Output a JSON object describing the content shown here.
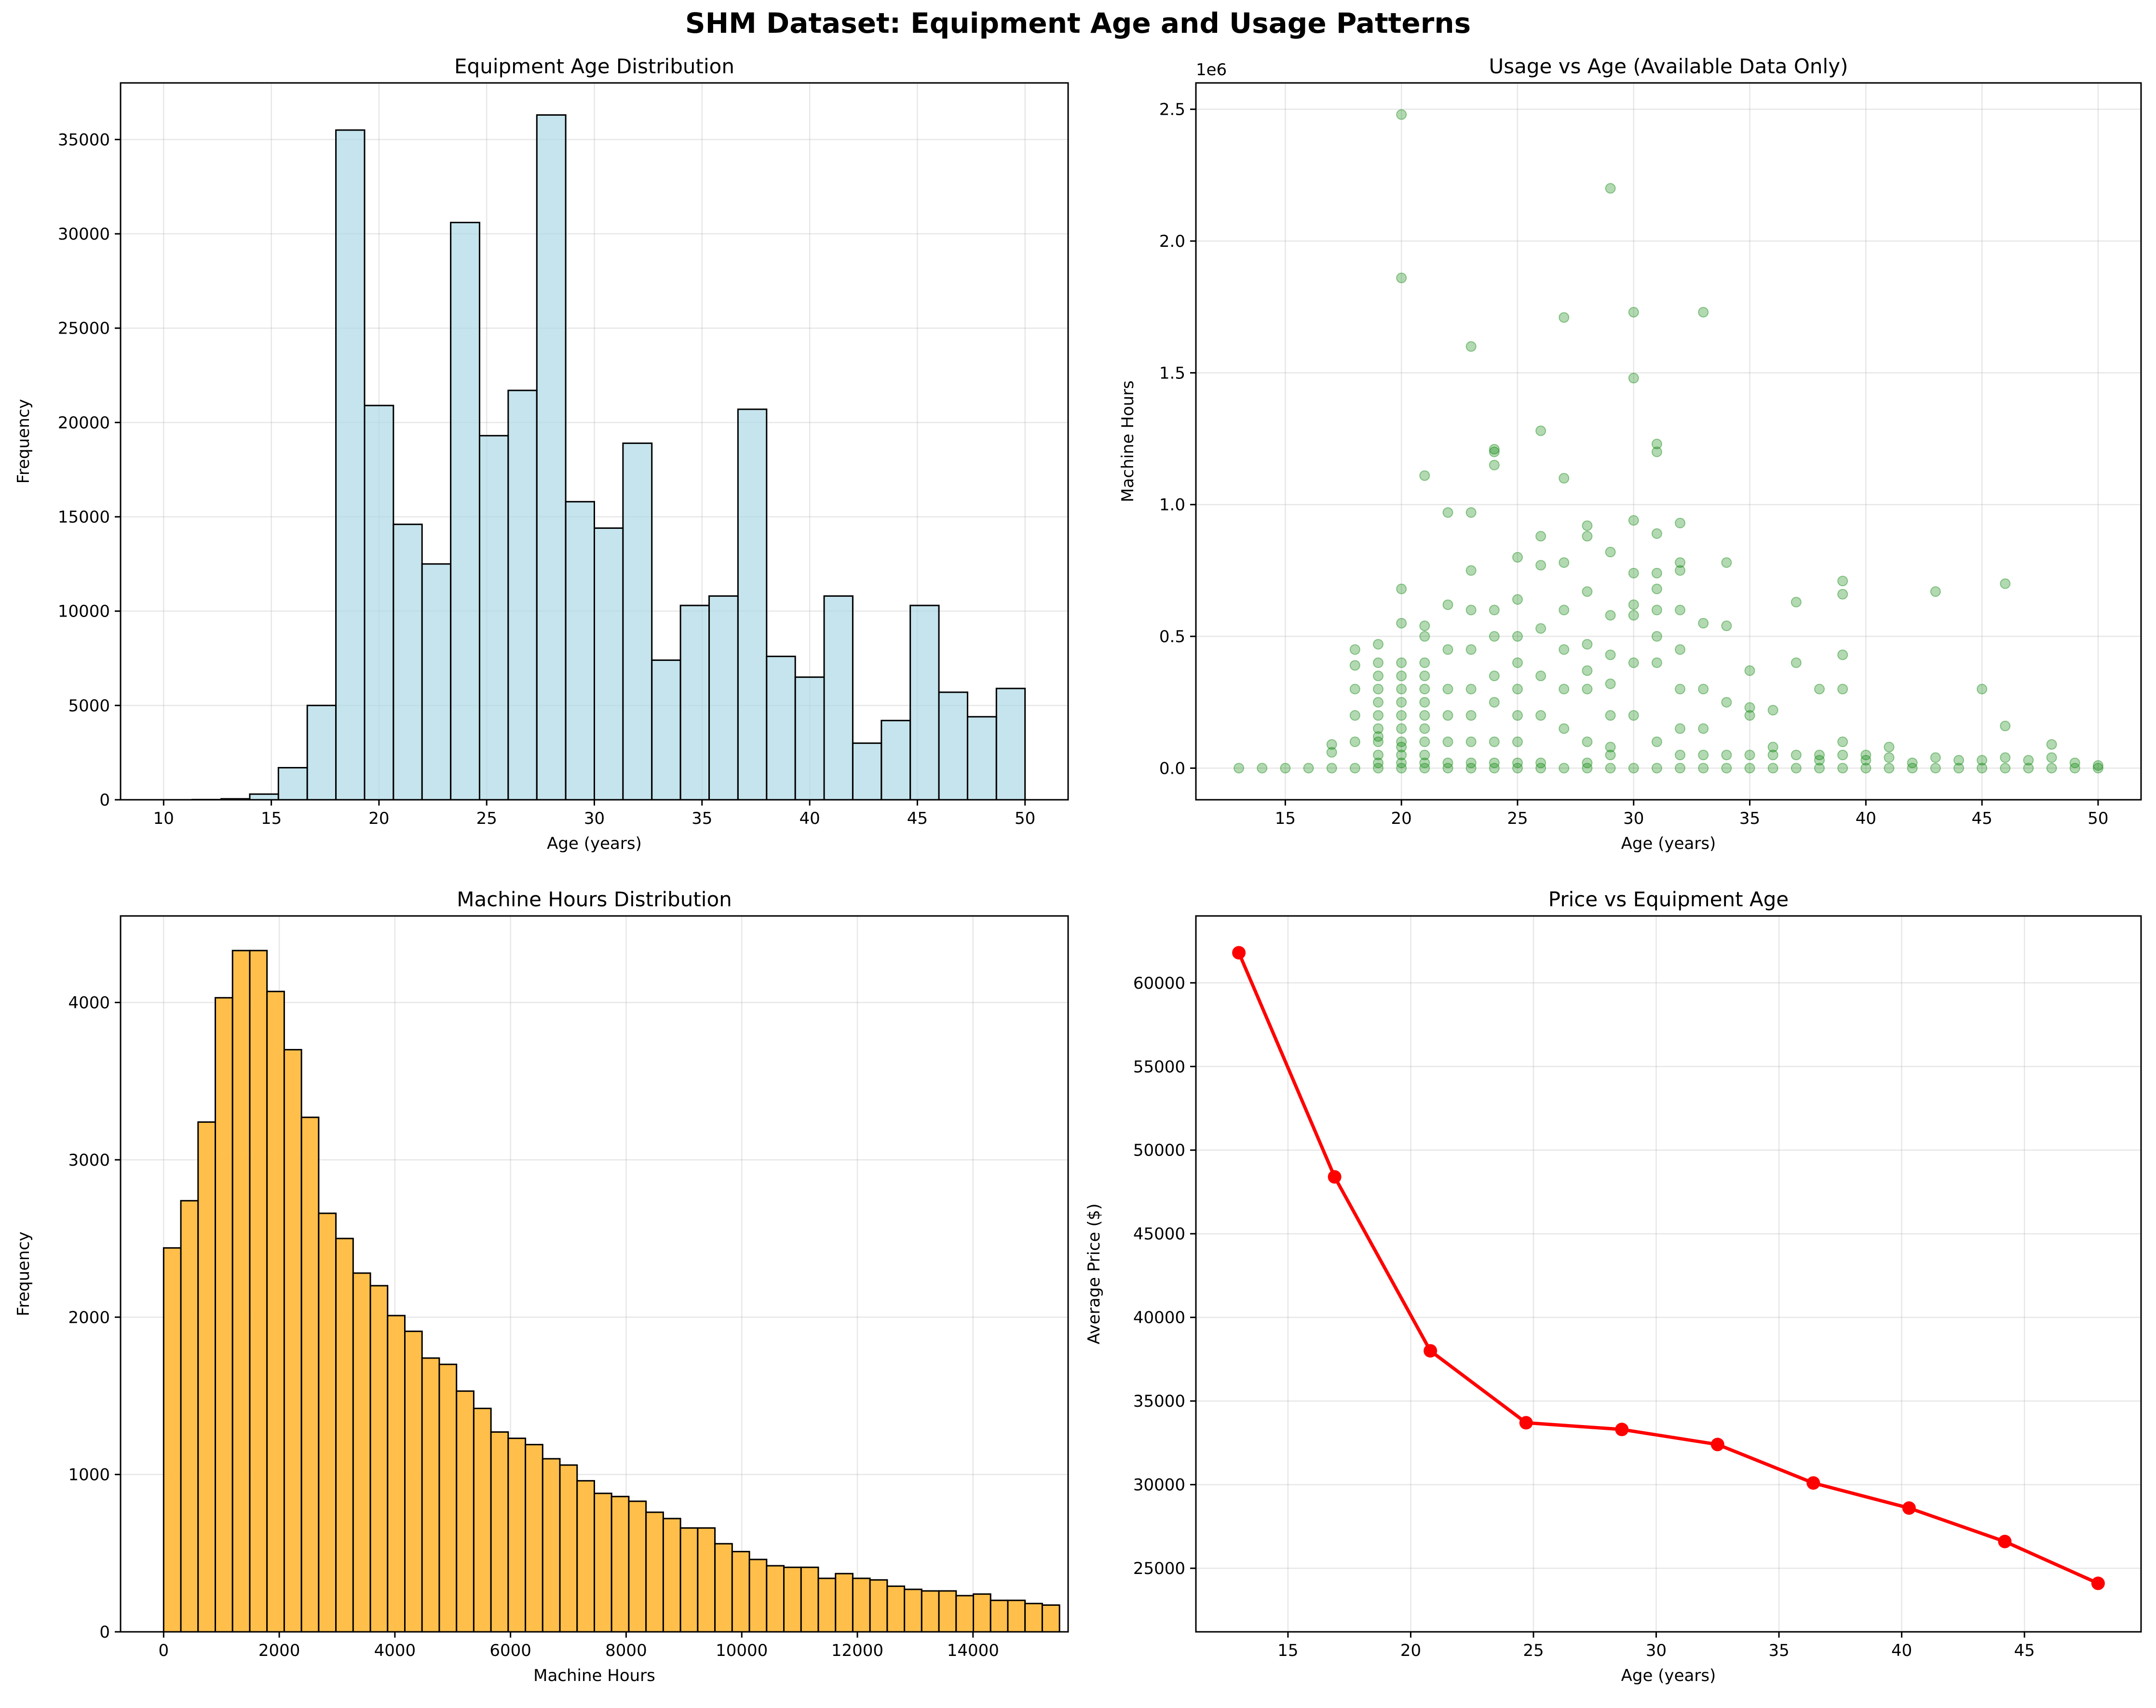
{
  "figure": {
    "suptitle": "SHM Dataset: Equipment Age and Usage Patterns"
  },
  "chart_data": [
    {
      "id": "age_hist",
      "type": "bar",
      "title": "Equipment Age Distribution",
      "xlabel": "Age (years)",
      "ylabel": "Frequency",
      "xlim": [
        8,
        52
      ],
      "ylim": [
        0,
        38000
      ],
      "xticks": [
        10,
        15,
        20,
        25,
        30,
        35,
        40,
        45,
        50
      ],
      "yticks": [
        0,
        5000,
        10000,
        15000,
        20000,
        25000,
        30000,
        35000
      ],
      "grid": true,
      "bar_color": "#add8e6",
      "edge_color": "#000000",
      "bin_edges": [
        10,
        11.33,
        12.67,
        14,
        15.33,
        16.67,
        18,
        19.33,
        20.67,
        22,
        23.33,
        24.67,
        26,
        27.33,
        28.67,
        30,
        31.33,
        32.67,
        34,
        35.33,
        36.67,
        38,
        39.33,
        40.67,
        42,
        43.33,
        44.67,
        46,
        47.33,
        48.67,
        50
      ],
      "values": [
        0,
        10,
        50,
        300,
        1700,
        5000,
        35500,
        20900,
        14600,
        12500,
        30600,
        19300,
        21700,
        36300,
        15800,
        14400,
        18900,
        7400,
        10300,
        10800,
        20700,
        7600,
        6500,
        10800,
        3000,
        4200,
        10300,
        5700,
        4400,
        5900
      ]
    },
    {
      "id": "usage_scatter",
      "type": "scatter",
      "title": "Usage vs Age (Available Data Only)",
      "xlabel": "Age (years)",
      "ylabel": "Machine Hours",
      "offset_label": "1e6",
      "xlim": [
        11.15,
        51.85
      ],
      "ylim": [
        -0.12,
        2.6
      ],
      "xticks": [
        15,
        20,
        25,
        30,
        35,
        40,
        45,
        50
      ],
      "yticks": [
        0.0,
        0.5,
        1.0,
        1.5,
        2.0,
        2.5
      ],
      "grid": true,
      "point_color": "#008000",
      "point_alpha": 0.3,
      "points_x": [
        13,
        14,
        15,
        16,
        17,
        17,
        17,
        18,
        18,
        18,
        18,
        18,
        18,
        19,
        19,
        19,
        19,
        19,
        19,
        19,
        19,
        19,
        19,
        19,
        19,
        20,
        20,
        20,
        20,
        20,
        20,
        20,
        20,
        20,
        20,
        20,
        20,
        20,
        20,
        20,
        21,
        21,
        21,
        21,
        21,
        21,
        21,
        21,
        21,
        21,
        21,
        21,
        21,
        22,
        22,
        22,
        22,
        22,
        22,
        22,
        22,
        23,
        23,
        23,
        23,
        23,
        23,
        23,
        23,
        23,
        23,
        24,
        24,
        24,
        24,
        24,
        24,
        24,
        24,
        24,
        24,
        25,
        25,
        25,
        25,
        25,
        25,
        25,
        25,
        25,
        26,
        26,
        26,
        26,
        26,
        26,
        26,
        26,
        27,
        27,
        27,
        27,
        27,
        27,
        27,
        27,
        28,
        28,
        28,
        28,
        28,
        28,
        28,
        28,
        28,
        29,
        29,
        29,
        29,
        29,
        29,
        29,
        29,
        29,
        30,
        30,
        30,
        30,
        30,
        30,
        30,
        30,
        30,
        31,
        31,
        31,
        31,
        31,
        31,
        31,
        31,
        31,
        31,
        32,
        32,
        32,
        32,
        32,
        32,
        32,
        32,
        32,
        33,
        33,
        33,
        33,
        33,
        33,
        34,
        34,
        34,
        34,
        34,
        35,
        35,
        35,
        35,
        35,
        36,
        36,
        36,
        36,
        37,
        37,
        37,
        37,
        38,
        38,
        38,
        38,
        39,
        39,
        39,
        39,
        39,
        39,
        39,
        40,
        40,
        40,
        41,
        41,
        41,
        42,
        42,
        43,
        43,
        43,
        44,
        44,
        45,
        45,
        45,
        46,
        46,
        46,
        46,
        47,
        47,
        48,
        48,
        48,
        49,
        49,
        50,
        50
      ],
      "points_y": [
        0.0,
        0.0,
        0.0,
        0.0,
        0.0,
        0.06,
        0.09,
        0.0,
        0.1,
        0.2,
        0.3,
        0.39,
        0.45,
        0.0,
        0.05,
        0.1,
        0.15,
        0.2,
        0.25,
        0.3,
        0.35,
        0.4,
        0.47,
        0.02,
        0.12,
        0.0,
        0.05,
        0.1,
        0.15,
        0.2,
        0.25,
        0.3,
        0.35,
        0.4,
        0.55,
        0.68,
        1.86,
        2.48,
        0.02,
        0.08,
        0.0,
        0.05,
        0.1,
        0.15,
        0.2,
        0.25,
        0.3,
        0.35,
        0.4,
        0.5,
        0.54,
        1.11,
        0.02,
        0.0,
        0.1,
        0.2,
        0.3,
        0.45,
        0.62,
        0.97,
        0.02,
        0.0,
        0.1,
        0.2,
        0.3,
        0.45,
        0.6,
        0.75,
        0.97,
        1.6,
        0.02,
        0.0,
        0.1,
        0.25,
        0.35,
        0.5,
        0.6,
        1.15,
        1.2,
        1.21,
        0.02,
        0.0,
        0.1,
        0.2,
        0.3,
        0.4,
        0.5,
        0.64,
        0.8,
        0.02,
        0.0,
        0.2,
        0.35,
        0.53,
        0.77,
        0.88,
        1.28,
        0.02,
        0.0,
        0.15,
        0.3,
        0.45,
        0.6,
        0.78,
        1.1,
        1.71,
        0.0,
        0.1,
        0.3,
        0.37,
        0.47,
        0.67,
        0.88,
        0.92,
        0.02,
        0.0,
        0.2,
        0.32,
        0.43,
        0.58,
        0.82,
        2.2,
        0.05,
        0.08,
        0.0,
        0.2,
        0.4,
        0.58,
        0.62,
        0.74,
        0.94,
        1.48,
        1.73,
        0.0,
        0.1,
        0.4,
        0.5,
        0.6,
        0.68,
        0.74,
        0.89,
        1.2,
        1.23,
        0.0,
        0.3,
        0.45,
        0.6,
        0.75,
        0.78,
        0.93,
        0.05,
        0.15,
        0.0,
        0.05,
        0.15,
        0.3,
        0.55,
        1.73,
        0.0,
        0.05,
        0.25,
        0.54,
        0.78,
        0.0,
        0.05,
        0.2,
        0.23,
        0.37,
        0.0,
        0.05,
        0.08,
        0.22,
        0.0,
        0.05,
        0.4,
        0.63,
        0.0,
        0.03,
        0.3,
        0.05,
        0.0,
        0.05,
        0.1,
        0.3,
        0.43,
        0.66,
        0.71,
        0.0,
        0.03,
        0.05,
        0.0,
        0.04,
        0.08,
        0.0,
        0.02,
        0.0,
        0.04,
        0.67,
        0.0,
        0.03,
        0.0,
        0.03,
        0.3,
        0.0,
        0.04,
        0.16,
        0.7,
        0.0,
        0.03,
        0.0,
        0.04,
        0.09,
        0.0,
        0.02,
        0.0,
        0.01
      ]
    },
    {
      "id": "hours_hist",
      "type": "bar",
      "title": "Machine Hours Distribution",
      "xlabel": "Machine Hours",
      "ylabel": "Frequency",
      "xlim": [
        -745,
        15645
      ],
      "ylim": [
        0,
        4550
      ],
      "xticks": [
        0,
        2000,
        4000,
        6000,
        8000,
        10000,
        12000,
        14000
      ],
      "yticks": [
        0,
        1000,
        2000,
        3000,
        4000
      ],
      "grid": true,
      "bar_color": "#ffbc40",
      "edge_color": "#000000",
      "bin_start": 0,
      "bin_width": 298,
      "values": [
        2440,
        2740,
        3240,
        4030,
        4330,
        4330,
        4070,
        3700,
        3270,
        2660,
        2500,
        2280,
        2200,
        2010,
        1910,
        1740,
        1700,
        1530,
        1420,
        1270,
        1230,
        1190,
        1100,
        1060,
        960,
        880,
        860,
        830,
        760,
        720,
        660,
        660,
        560,
        510,
        460,
        420,
        410,
        410,
        340,
        370,
        340,
        330,
        290,
        270,
        260,
        260,
        230,
        240,
        200,
        200,
        180,
        170
      ]
    },
    {
      "id": "price_line",
      "type": "line",
      "title": "Price vs Equipment Age",
      "xlabel": "Age (years)",
      "ylabel": "Average Price ($)",
      "xlim": [
        11.25,
        49.75
      ],
      "ylim": [
        21200,
        64000
      ],
      "xticks": [
        15,
        20,
        25,
        30,
        35,
        40,
        45
      ],
      "yticks": [
        25000,
        30000,
        35000,
        40000,
        45000,
        50000,
        55000,
        60000
      ],
      "grid": true,
      "line_color": "#ff0000",
      "x": [
        13.0,
        16.9,
        20.8,
        24.7,
        28.6,
        32.5,
        36.4,
        40.3,
        44.2,
        48.0
      ],
      "y": [
        61800,
        48400,
        38000,
        33700,
        33300,
        32400,
        30100,
        28600,
        26600,
        24100
      ]
    }
  ]
}
